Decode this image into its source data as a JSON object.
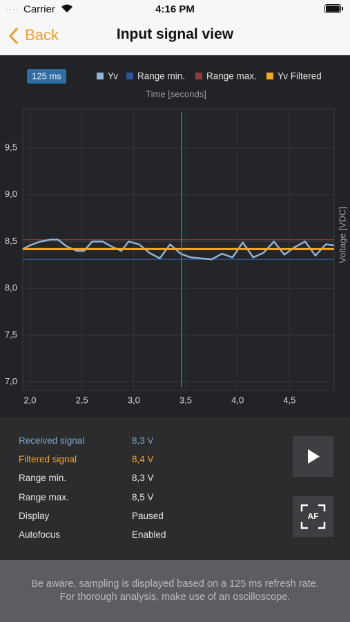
{
  "status_bar": {
    "carrier": "Carrier",
    "time": "4:16 PM"
  },
  "nav": {
    "back": "Back",
    "title": "Input signal view"
  },
  "chart_data": {
    "type": "line",
    "badge": "125 ms",
    "x_label": "Time [seconds]",
    "y_label": "Voltage [VDC]",
    "x": [
      1.93,
      2.0,
      2.1,
      2.2,
      2.27,
      2.35,
      2.45,
      2.52,
      2.6,
      2.7,
      2.78,
      2.88,
      2.95,
      3.05,
      3.15,
      3.25,
      3.35,
      3.45,
      3.55,
      3.65,
      3.75,
      3.85,
      3.95,
      4.05,
      4.15,
      4.25,
      4.35,
      4.45,
      4.55,
      4.65,
      4.75,
      4.85,
      4.93
    ],
    "series": [
      {
        "name": "Yv",
        "color": "#8fb3d6",
        "values": [
          8.42,
          8.46,
          8.5,
          8.52,
          8.52,
          8.45,
          8.4,
          8.4,
          8.5,
          8.5,
          8.45,
          8.4,
          8.5,
          8.47,
          8.38,
          8.32,
          8.47,
          8.37,
          8.33,
          8.32,
          8.31,
          8.37,
          8.33,
          8.49,
          8.33,
          8.38,
          8.5,
          8.36,
          8.44,
          8.5,
          8.35,
          8.47,
          8.46
        ]
      },
      {
        "name": "Range min.",
        "color": "#2f5596",
        "values": [
          8.31,
          8.31,
          8.31,
          8.31,
          8.31,
          8.31,
          8.31,
          8.31,
          8.31,
          8.31,
          8.31,
          8.31,
          8.31,
          8.31,
          8.31,
          8.31,
          8.31,
          8.31,
          8.31,
          8.31,
          8.31,
          8.31,
          8.31,
          8.31,
          8.31,
          8.31,
          8.31,
          8.31,
          8.31,
          8.31,
          8.31,
          8.31,
          8.31
        ]
      },
      {
        "name": "Range max.",
        "color": "#8e3b36",
        "values": [
          8.52,
          8.52,
          8.52,
          8.52,
          8.52,
          8.52,
          8.52,
          8.52,
          8.52,
          8.52,
          8.52,
          8.52,
          8.52,
          8.52,
          8.52,
          8.52,
          8.52,
          8.52,
          8.52,
          8.52,
          8.52,
          8.52,
          8.52,
          8.52,
          8.52,
          8.52,
          8.52,
          8.52,
          8.52,
          8.52,
          8.52,
          8.52,
          8.52
        ]
      },
      {
        "name": "Yv Filtered",
        "color": "#f5a623",
        "values": [
          8.42,
          8.42,
          8.42,
          8.42,
          8.42,
          8.42,
          8.42,
          8.42,
          8.42,
          8.42,
          8.42,
          8.42,
          8.42,
          8.42,
          8.42,
          8.42,
          8.42,
          8.42,
          8.42,
          8.42,
          8.42,
          8.42,
          8.42,
          8.42,
          8.42,
          8.42,
          8.42,
          8.42,
          8.42,
          8.42,
          8.42,
          8.42,
          8.42
        ]
      }
    ],
    "cursor_x": 3.46,
    "cursor_color": "#3fbf6a",
    "xlim": [
      1.93,
      4.93
    ],
    "ylim": [
      6.91,
      9.92
    ],
    "xticks": [
      {
        "value": 2.0,
        "label": "2,0"
      },
      {
        "value": 2.5,
        "label": "2,5"
      },
      {
        "value": 3.0,
        "label": "3,0"
      },
      {
        "value": 3.5,
        "label": "3,5"
      },
      {
        "value": 4.0,
        "label": "4,0"
      },
      {
        "value": 4.5,
        "label": "4,5"
      }
    ],
    "yticks": [
      {
        "value": 7.0,
        "label": "7,0"
      },
      {
        "value": 7.5,
        "label": "7,5"
      },
      {
        "value": 8.0,
        "label": "8,0"
      },
      {
        "value": 8.5,
        "label": "8,5"
      },
      {
        "value": 9.0,
        "label": "9,0"
      },
      {
        "value": 9.5,
        "label": "9,5"
      }
    ],
    "grid": true
  },
  "readings": [
    {
      "label": "Received signal",
      "value": "8,3 V",
      "color": "#7ea6cb"
    },
    {
      "label": "Filtered signal",
      "value": "8,4 V",
      "color": "#f5a623"
    },
    {
      "label": "Range min.",
      "value": "8,3 V",
      "color": "#e8e8e8"
    },
    {
      "label": "Range max.",
      "value": "8,5 V",
      "color": "#e8e8e8"
    },
    {
      "label": "Display",
      "value": "Paused",
      "color": "#e8e8e8"
    },
    {
      "label": "Autofocus",
      "value": "Enabled",
      "color": "#e8e8e8"
    }
  ],
  "buttons": {
    "autofocus": "AF"
  },
  "footer": "Be aware, sampling is displayed based on a 125 ms refresh rate. For thorough analysis, make use of an oscilloscope."
}
